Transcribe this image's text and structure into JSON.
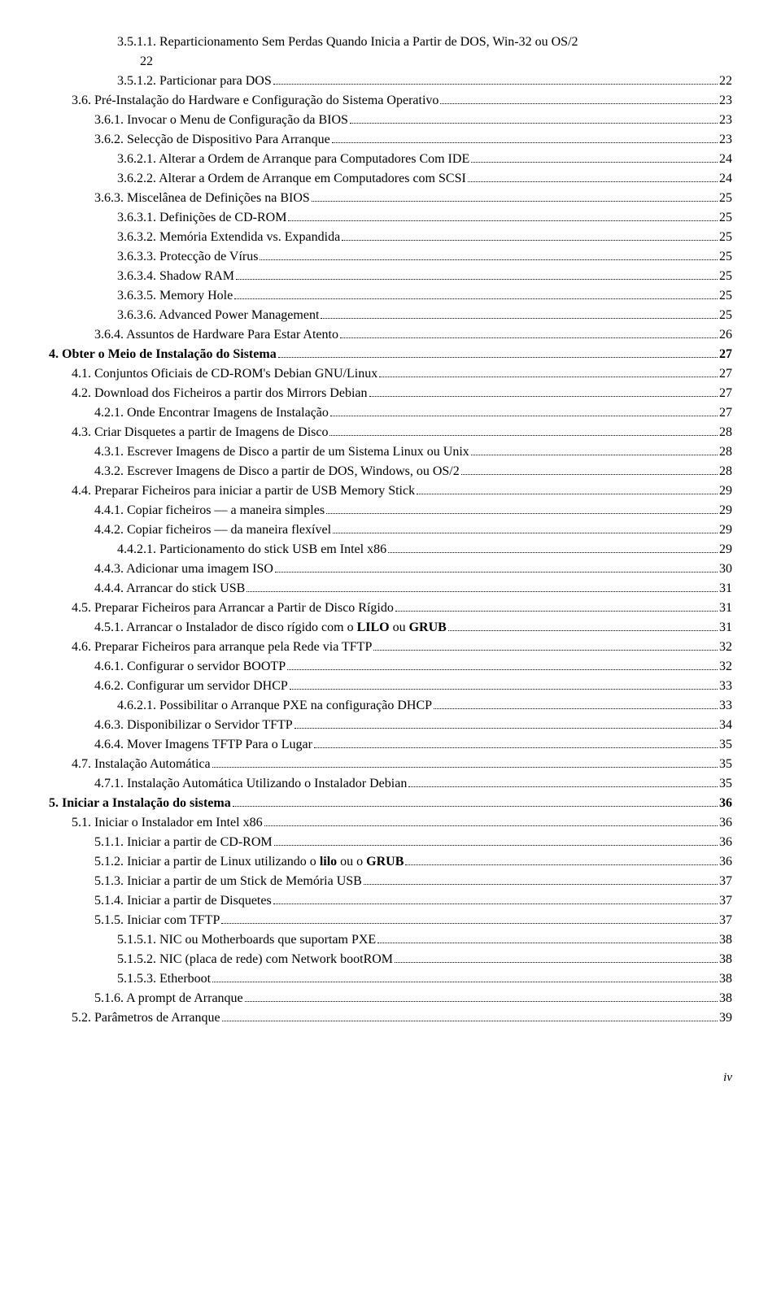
{
  "toc": [
    {
      "indent": 3,
      "text": "3.5.1.1. Reparticionamento Sem Perdas Quando Inicia a Partir de DOS, Win-32 ou OS/2",
      "page": "",
      "wrap": true,
      "wrapcont": "22"
    },
    {
      "indent": 3,
      "text": "3.5.1.2. Particionar para DOS",
      "page": "22"
    },
    {
      "indent": 1,
      "text": "3.6. Pré-Instalação do Hardware e Configuração do Sistema Operativo",
      "page": "23"
    },
    {
      "indent": 2,
      "text": "3.6.1. Invocar o Menu de Configuração da BIOS",
      "page": "23"
    },
    {
      "indent": 2,
      "text": "3.6.2. Selecção de Dispositivo Para Arranque",
      "page": "23"
    },
    {
      "indent": 3,
      "text": "3.6.2.1. Alterar a Ordem de Arranque para Computadores Com IDE",
      "page": "24"
    },
    {
      "indent": 3,
      "text": "3.6.2.2. Alterar a Ordem de Arranque em Computadores com SCSI",
      "page": "24"
    },
    {
      "indent": 2,
      "text": "3.6.3. Miscelânea de Definições na BIOS",
      "page": "25"
    },
    {
      "indent": 3,
      "text": "3.6.3.1. Definições de CD-ROM",
      "page": "25"
    },
    {
      "indent": 3,
      "text": "3.6.3.2. Memória Extendida vs. Expandida",
      "page": "25"
    },
    {
      "indent": 3,
      "text": "3.6.3.3. Protecção de Vírus",
      "page": "25"
    },
    {
      "indent": 3,
      "text": "3.6.3.4. Shadow RAM",
      "page": "25"
    },
    {
      "indent": 3,
      "text": "3.6.3.5. Memory Hole",
      "page": "25"
    },
    {
      "indent": 3,
      "text": "3.6.3.6. Advanced Power Management",
      "page": "25"
    },
    {
      "indent": 2,
      "text": "3.6.4. Assuntos de Hardware Para Estar Atento",
      "page": "26"
    },
    {
      "indent": 0,
      "bold": true,
      "text": "4. Obter o Meio de Instalação do Sistema",
      "page": "27"
    },
    {
      "indent": 1,
      "text": "4.1. Conjuntos Oficiais de CD-ROM's Debian GNU/Linux",
      "page": "27"
    },
    {
      "indent": 1,
      "text": "4.2. Download dos Ficheiros a partir dos Mirrors Debian",
      "page": "27"
    },
    {
      "indent": 2,
      "text": "4.2.1. Onde Encontrar Imagens de Instalação",
      "page": "27"
    },
    {
      "indent": 1,
      "text": "4.3. Criar Disquetes a partir de Imagens de Disco",
      "page": "28"
    },
    {
      "indent": 2,
      "text": "4.3.1. Escrever Imagens de Disco a partir de um Sistema Linux ou Unix",
      "page": "28"
    },
    {
      "indent": 2,
      "text": "4.3.2. Escrever Imagens de Disco a partir de DOS, Windows, ou OS/2",
      "page": "28"
    },
    {
      "indent": 1,
      "text": "4.4. Preparar Ficheiros para iniciar a partir de USB Memory Stick",
      "page": "29"
    },
    {
      "indent": 2,
      "text": "4.4.1. Copiar ficheiros — a maneira simples",
      "page": "29"
    },
    {
      "indent": 2,
      "text": "4.4.2. Copiar ficheiros — da maneira flexível",
      "page": "29"
    },
    {
      "indent": 3,
      "text": "4.4.2.1. Particionamento do stick USB em Intel x86",
      "page": "29"
    },
    {
      "indent": 2,
      "text": "4.4.3. Adicionar uma imagem ISO",
      "page": "30"
    },
    {
      "indent": 2,
      "text": "4.4.4. Arrancar do stick USB",
      "page": "31"
    },
    {
      "indent": 1,
      "text": "4.5. Preparar Ficheiros para Arrancar a Partir de Disco Rígido",
      "page": "31"
    },
    {
      "indent": 2,
      "text": "4.5.1. Arrancar o Instalador de disco rígido com o LILO ou GRUB",
      "page": "31"
    },
    {
      "indent": 1,
      "text": "4.6. Preparar Ficheiros para arranque pela Rede via TFTP",
      "page": "32"
    },
    {
      "indent": 2,
      "text": "4.6.1. Configurar o servidor BOOTP",
      "page": "32"
    },
    {
      "indent": 2,
      "text": "4.6.2. Configurar um servidor DHCP",
      "page": "33"
    },
    {
      "indent": 3,
      "text": "4.6.2.1. Possibilitar o Arranque PXE na configuração DHCP",
      "page": "33"
    },
    {
      "indent": 2,
      "text": "4.6.3. Disponibilizar o Servidor TFTP",
      "page": "34"
    },
    {
      "indent": 2,
      "text": "4.6.4. Mover Imagens TFTP Para o Lugar",
      "page": "35"
    },
    {
      "indent": 1,
      "text": "4.7. Instalação Automática",
      "page": "35"
    },
    {
      "indent": 2,
      "text": "4.7.1. Instalação Automática Utilizando o Instalador Debian",
      "page": "35"
    },
    {
      "indent": 0,
      "bold": true,
      "text": "5. Iniciar a Instalação do sistema",
      "page": "36"
    },
    {
      "indent": 1,
      "text": "5.1. Iniciar o Instalador em Intel x86",
      "page": "36"
    },
    {
      "indent": 2,
      "text": "5.1.1. Iniciar a partir de CD-ROM",
      "page": "36"
    },
    {
      "indent": 2,
      "text": "5.1.2. Iniciar a partir de Linux utilizando o lilo ou o GRUB",
      "page": "36"
    },
    {
      "indent": 2,
      "text": "5.1.3. Iniciar a partir de um Stick de Memória USB",
      "page": "37"
    },
    {
      "indent": 2,
      "text": "5.1.4. Iniciar a partir de Disquetes",
      "page": "37"
    },
    {
      "indent": 2,
      "text": "5.1.5. Iniciar com TFTP",
      "page": "37"
    },
    {
      "indent": 3,
      "text": "5.1.5.1. NIC ou Motherboards que suportam PXE",
      "page": "38"
    },
    {
      "indent": 3,
      "text": "5.1.5.2. NIC (placa de rede) com Network bootROM",
      "page": "38"
    },
    {
      "indent": 3,
      "text": "5.1.5.3. Etherboot",
      "page": "38"
    },
    {
      "indent": 2,
      "text": "5.1.6. A prompt de Arranque",
      "page": "38"
    },
    {
      "indent": 1,
      "text": "5.2. Parâmetros de Arranque",
      "page": "39"
    }
  ],
  "pageFooter": "iv",
  "boldWords": [
    "LILO",
    "GRUB",
    "lilo"
  ]
}
